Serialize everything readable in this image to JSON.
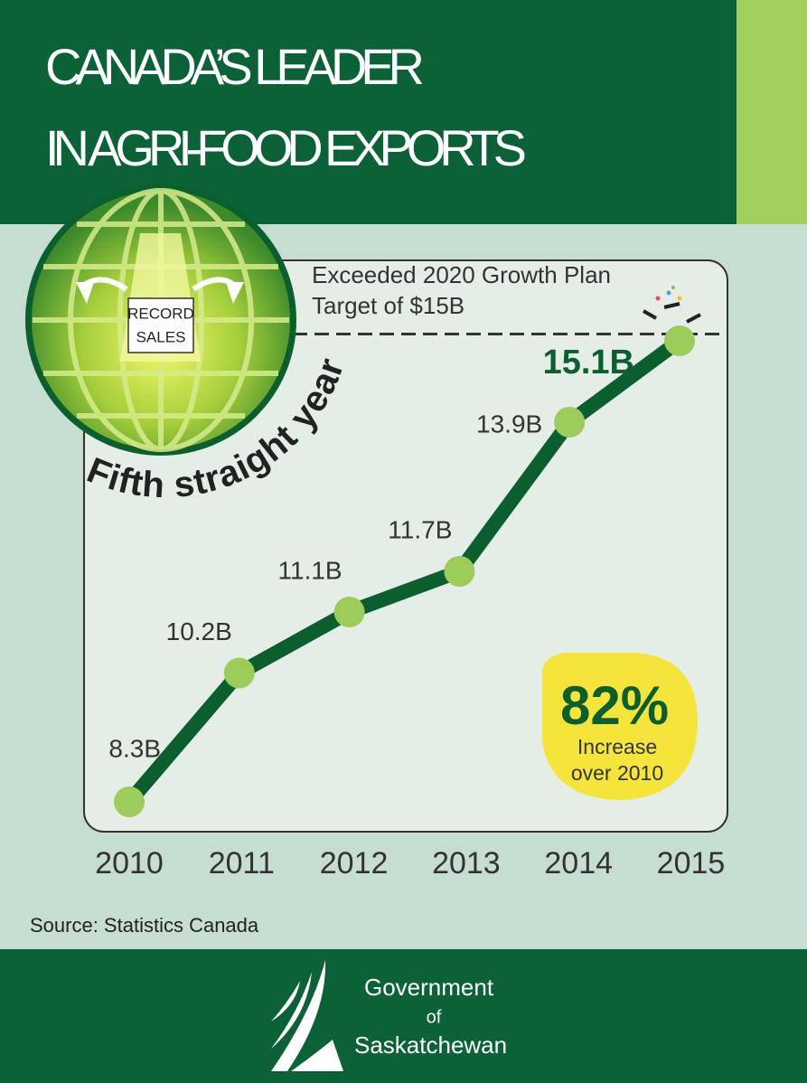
{
  "chart_data": {
    "type": "line",
    "title_lines": [
      "CANADA’S LEADER",
      "IN AGRI-FOOD EXPORTS"
    ],
    "categories": [
      "2010",
      "2011",
      "2012",
      "2013",
      "2014",
      "2015"
    ],
    "values": [
      8.3,
      10.2,
      11.1,
      11.7,
      13.9,
      15.1
    ],
    "value_labels": [
      "8.3B",
      "10.2B",
      "11.1B",
      "11.7B",
      "13.9B",
      "15.1B"
    ],
    "color": "#0b5e2e",
    "point_color": "#9ccc5a",
    "target": 15,
    "target_text": [
      "Exceeded 2020 Growth Plan",
      "Target of $15B"
    ],
    "badge": [
      "RECORD",
      "SALES"
    ],
    "streak": "Fifth straight year",
    "highlight": {
      "label": "82%",
      "text": [
        "Increase",
        "over 2010"
      ]
    },
    "source": "Source: Statistics Canada",
    "footer": [
      "Government",
      "of",
      "Saskatchewan"
    ]
  }
}
